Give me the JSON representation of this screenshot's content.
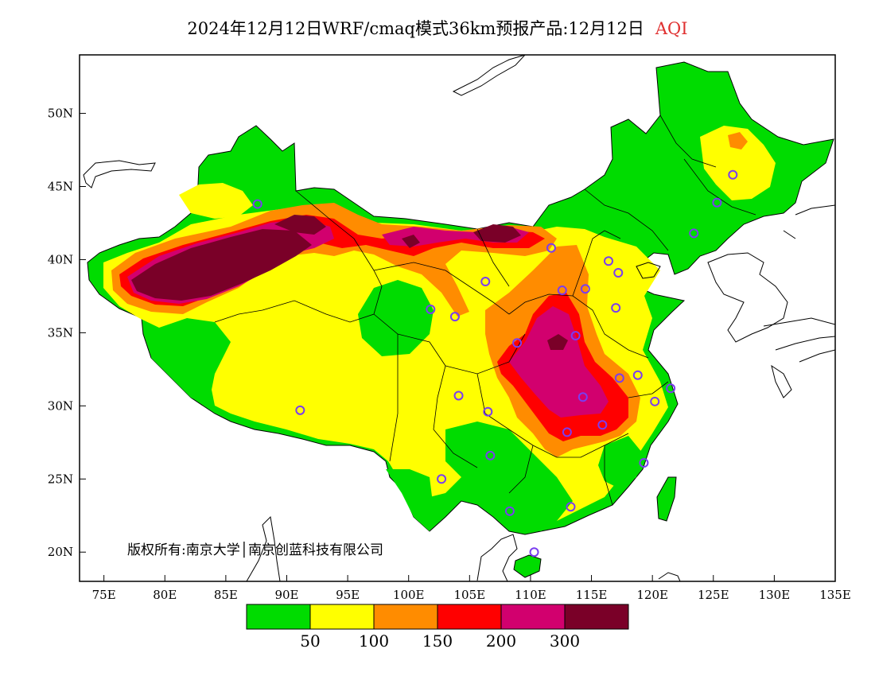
{
  "title": {
    "main": "2024年12月12日WRF/cmaq模式36km预报产品:12月12日",
    "variable": "AQI"
  },
  "map": {
    "lon_range": [
      73,
      135
    ],
    "lat_range": [
      18,
      54
    ],
    "lat_ticks": [
      "20N",
      "25N",
      "30N",
      "35N",
      "40N",
      "45N",
      "50N"
    ],
    "lon_ticks": [
      "75E",
      "80E",
      "85E",
      "90E",
      "95E",
      "100E",
      "105E",
      "110E",
      "115E",
      "120E",
      "125E",
      "130E",
      "135E"
    ]
  },
  "legend": {
    "colors": [
      "#00dc00",
      "#ffff00",
      "#ff8c00",
      "#ff0000",
      "#d2006e",
      "#7a0028"
    ],
    "labels": [
      "50",
      "100",
      "150",
      "200",
      "300"
    ]
  },
  "copyright": "版权所有:南京大学│南京创蓝科技有限公司",
  "stations": [
    [
      87.6,
      43.8
    ],
    [
      91.1,
      29.7
    ],
    [
      101.8,
      36.6
    ],
    [
      103.8,
      36.1
    ],
    [
      106.3,
      38.5
    ],
    [
      104.1,
      30.7
    ],
    [
      106.5,
      29.6
    ],
    [
      106.7,
      26.6
    ],
    [
      102.7,
      25.0
    ],
    [
      108.3,
      22.8
    ],
    [
      110.3,
      20.0
    ],
    [
      113.3,
      23.1
    ],
    [
      119.3,
      26.1
    ],
    [
      113.0,
      28.2
    ],
    [
      115.9,
      28.7
    ],
    [
      114.3,
      30.6
    ],
    [
      117.3,
      31.9
    ],
    [
      118.8,
      32.1
    ],
    [
      120.2,
      30.3
    ],
    [
      121.5,
      31.2
    ],
    [
      113.7,
      34.8
    ],
    [
      108.9,
      34.3
    ],
    [
      112.6,
      37.9
    ],
    [
      114.5,
      38.0
    ],
    [
      116.4,
      39.9
    ],
    [
      117.2,
      39.1
    ],
    [
      111.7,
      40.8
    ],
    [
      117.0,
      36.7
    ],
    [
      123.4,
      41.8
    ],
    [
      125.3,
      43.9
    ],
    [
      126.6,
      45.8
    ]
  ]
}
